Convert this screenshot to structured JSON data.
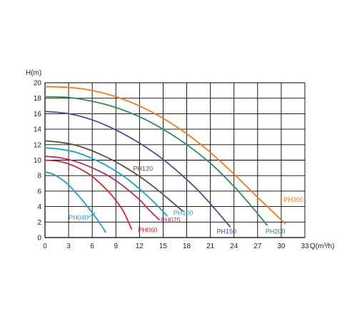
{
  "chart_data": {
    "type": "line",
    "title": "",
    "xlabel": "Q(m³/h)",
    "ylabel": "H(m)",
    "xlim": [
      0,
      33
    ],
    "ylim": [
      0,
      20
    ],
    "x_ticks": [
      "0",
      "3",
      "6",
      "9",
      "12",
      "15",
      "18",
      "21",
      "24",
      "27",
      "30",
      "33"
    ],
    "y_ticks": [
      "0",
      "2",
      "4",
      "6",
      "8",
      "10",
      "12",
      "14",
      "16",
      "18",
      "20"
    ],
    "grid": true,
    "series": [
      {
        "name": "PH040",
        "color": "#1a9fd0",
        "x": [
          0,
          1,
          2,
          3,
          4,
          5,
          6,
          7,
          7.7
        ],
        "y": [
          8.5,
          8.2,
          7.6,
          6.8,
          5.7,
          4.5,
          3.2,
          1.8,
          0.7
        ]
      },
      {
        "name": "PH060",
        "color": "#d42a2a",
        "x": [
          0,
          2,
          4,
          6,
          8,
          9,
          10,
          11
        ],
        "y": [
          10.0,
          9.8,
          9.1,
          7.9,
          6.0,
          4.8,
          3.3,
          1.1
        ]
      },
      {
        "name": "PH075",
        "color": "#b03070",
        "x": [
          0,
          2,
          4,
          6,
          8,
          10,
          12,
          13,
          14.5
        ],
        "y": [
          10.5,
          10.3,
          9.8,
          9.0,
          8.0,
          6.6,
          4.9,
          3.8,
          2.3
        ]
      },
      {
        "name": "PH100",
        "color": "#1a9fd0",
        "x": [
          0,
          2,
          4,
          6,
          8,
          10,
          12,
          14,
          15.5
        ],
        "y": [
          11.6,
          11.4,
          11.0,
          10.2,
          9.2,
          7.9,
          6.3,
          4.4,
          2.8
        ]
      },
      {
        "name": "PH120",
        "color": "#6a4a38",
        "x": [
          0,
          2,
          4,
          6,
          8,
          10,
          12,
          14,
          16,
          17.5
        ],
        "y": [
          12.5,
          12.3,
          11.9,
          11.2,
          10.3,
          9.2,
          7.9,
          6.4,
          4.7,
          3.4
        ]
      },
      {
        "name": "PH150",
        "color": "#4a4aa0",
        "x": [
          0,
          3,
          6,
          9,
          12,
          15,
          18,
          20,
          22,
          23.5
        ],
        "y": [
          16.3,
          16.0,
          15.2,
          13.9,
          12.2,
          10.1,
          7.5,
          5.5,
          3.2,
          1.4
        ]
      },
      {
        "name": "PH200",
        "color": "#2a9050",
        "x": [
          0,
          3,
          6,
          9,
          12,
          15,
          18,
          21,
          24,
          26,
          28.2
        ],
        "y": [
          18.2,
          18.1,
          17.6,
          16.8,
          15.6,
          14.0,
          12.0,
          9.6,
          6.6,
          4.3,
          1.6
        ]
      },
      {
        "name": "PH300",
        "color": "#ef7d1a",
        "x": [
          0,
          3,
          6,
          9,
          12,
          15,
          18,
          21,
          24,
          27,
          30.5
        ],
        "y": [
          19.5,
          19.4,
          19.0,
          18.2,
          17.0,
          15.4,
          13.4,
          11.0,
          8.2,
          5.2,
          1.8
        ]
      }
    ],
    "labels": [
      {
        "text": "PH040",
        "series": "PH040",
        "x": 3.0,
        "y": 2.3
      },
      {
        "text": "PH060",
        "series": "PH060",
        "x": 11.8,
        "y": 0.7
      },
      {
        "text": "PH075",
        "series": "PH075",
        "x": 14.7,
        "y": 2.0
      },
      {
        "text": "PH100",
        "series": "PH100",
        "x": 16.3,
        "y": 2.9
      },
      {
        "text": "PH120",
        "series": "PH120",
        "x": 11.2,
        "y": 8.6
      },
      {
        "text": "PH150",
        "series": "PH150",
        "x": 21.8,
        "y": 0.5
      },
      {
        "text": "PH200",
        "series": "PH200",
        "x": 28.0,
        "y": 0.5
      },
      {
        "text": "PH300",
        "series": "PH300",
        "x": 30.3,
        "y": 4.6
      }
    ]
  }
}
